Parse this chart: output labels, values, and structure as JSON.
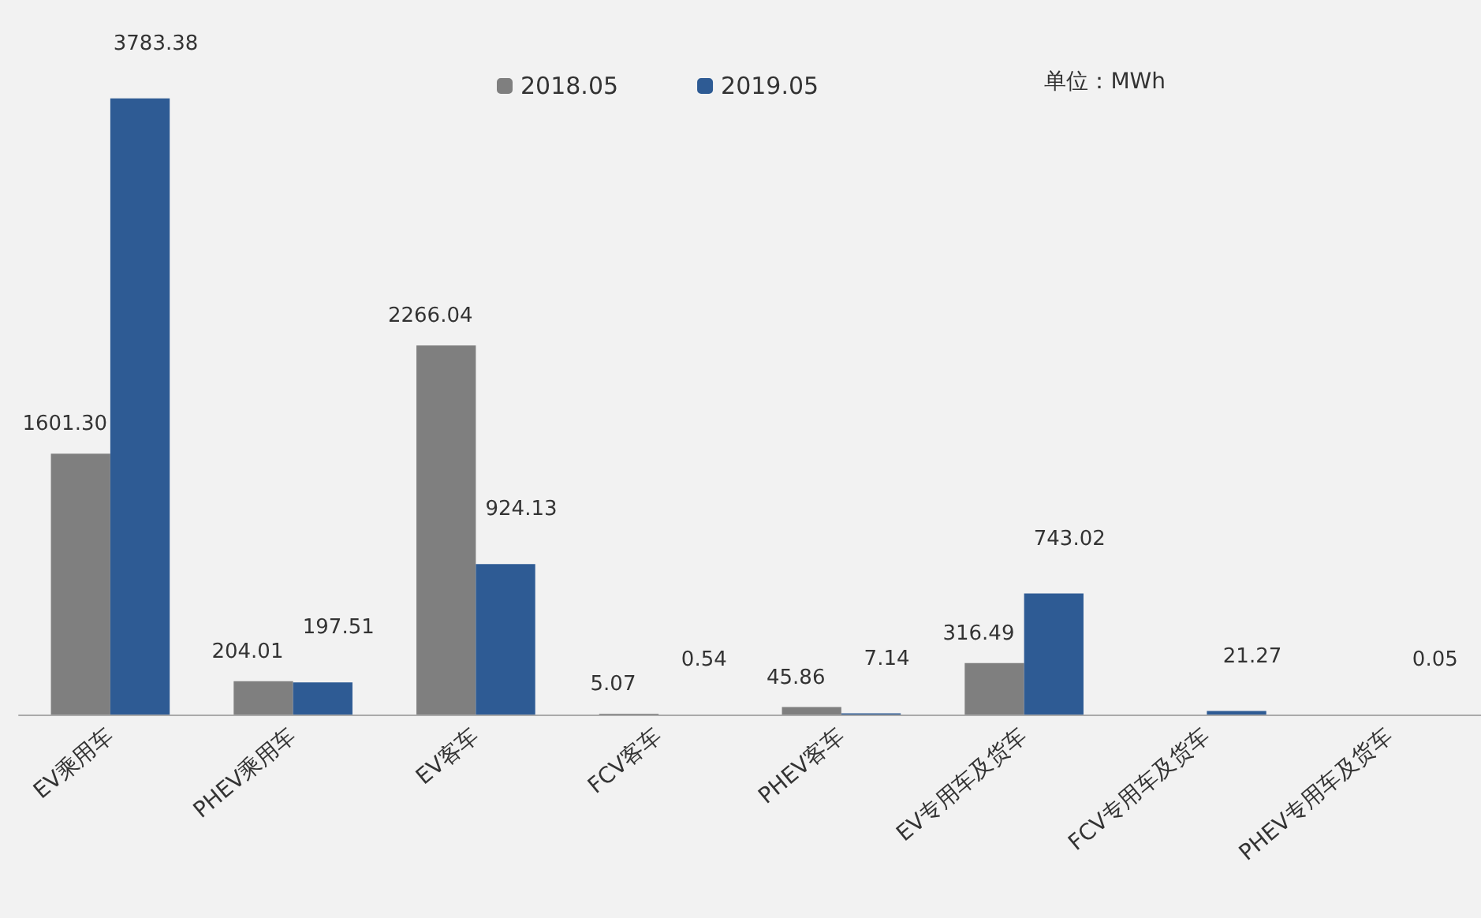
{
  "chart_data": {
    "type": "bar",
    "categories": [
      "EV乘用车",
      "PHEV乘用车",
      "EV客车",
      "FCV客车",
      "PHEV客车",
      "EV专用车及货车",
      "FCV专用车及货车",
      "PHEV专用车及货车"
    ],
    "series": [
      {
        "name": "2018.05",
        "color": "#7f7f7f",
        "values": [
          1601.3,
          204.01,
          2266.04,
          5.07,
          45.86,
          316.49,
          null,
          null
        ],
        "value_labels": [
          "1601.30",
          "204.01",
          "2266.04",
          "5.07",
          "45.86",
          "316.49",
          null,
          null
        ]
      },
      {
        "name": "2019.05",
        "color": "#2e5b94",
        "values": [
          3783.38,
          197.51,
          924.13,
          0.54,
          7.14,
          743.02,
          21.27,
          0.05
        ],
        "value_labels": [
          "3783.38",
          "197.51",
          "924.13",
          "0.54",
          "7.14",
          "743.02",
          "21.27",
          "0.05"
        ]
      }
    ],
    "annotations": [
      "单位：MWh"
    ],
    "legend": "top"
  }
}
